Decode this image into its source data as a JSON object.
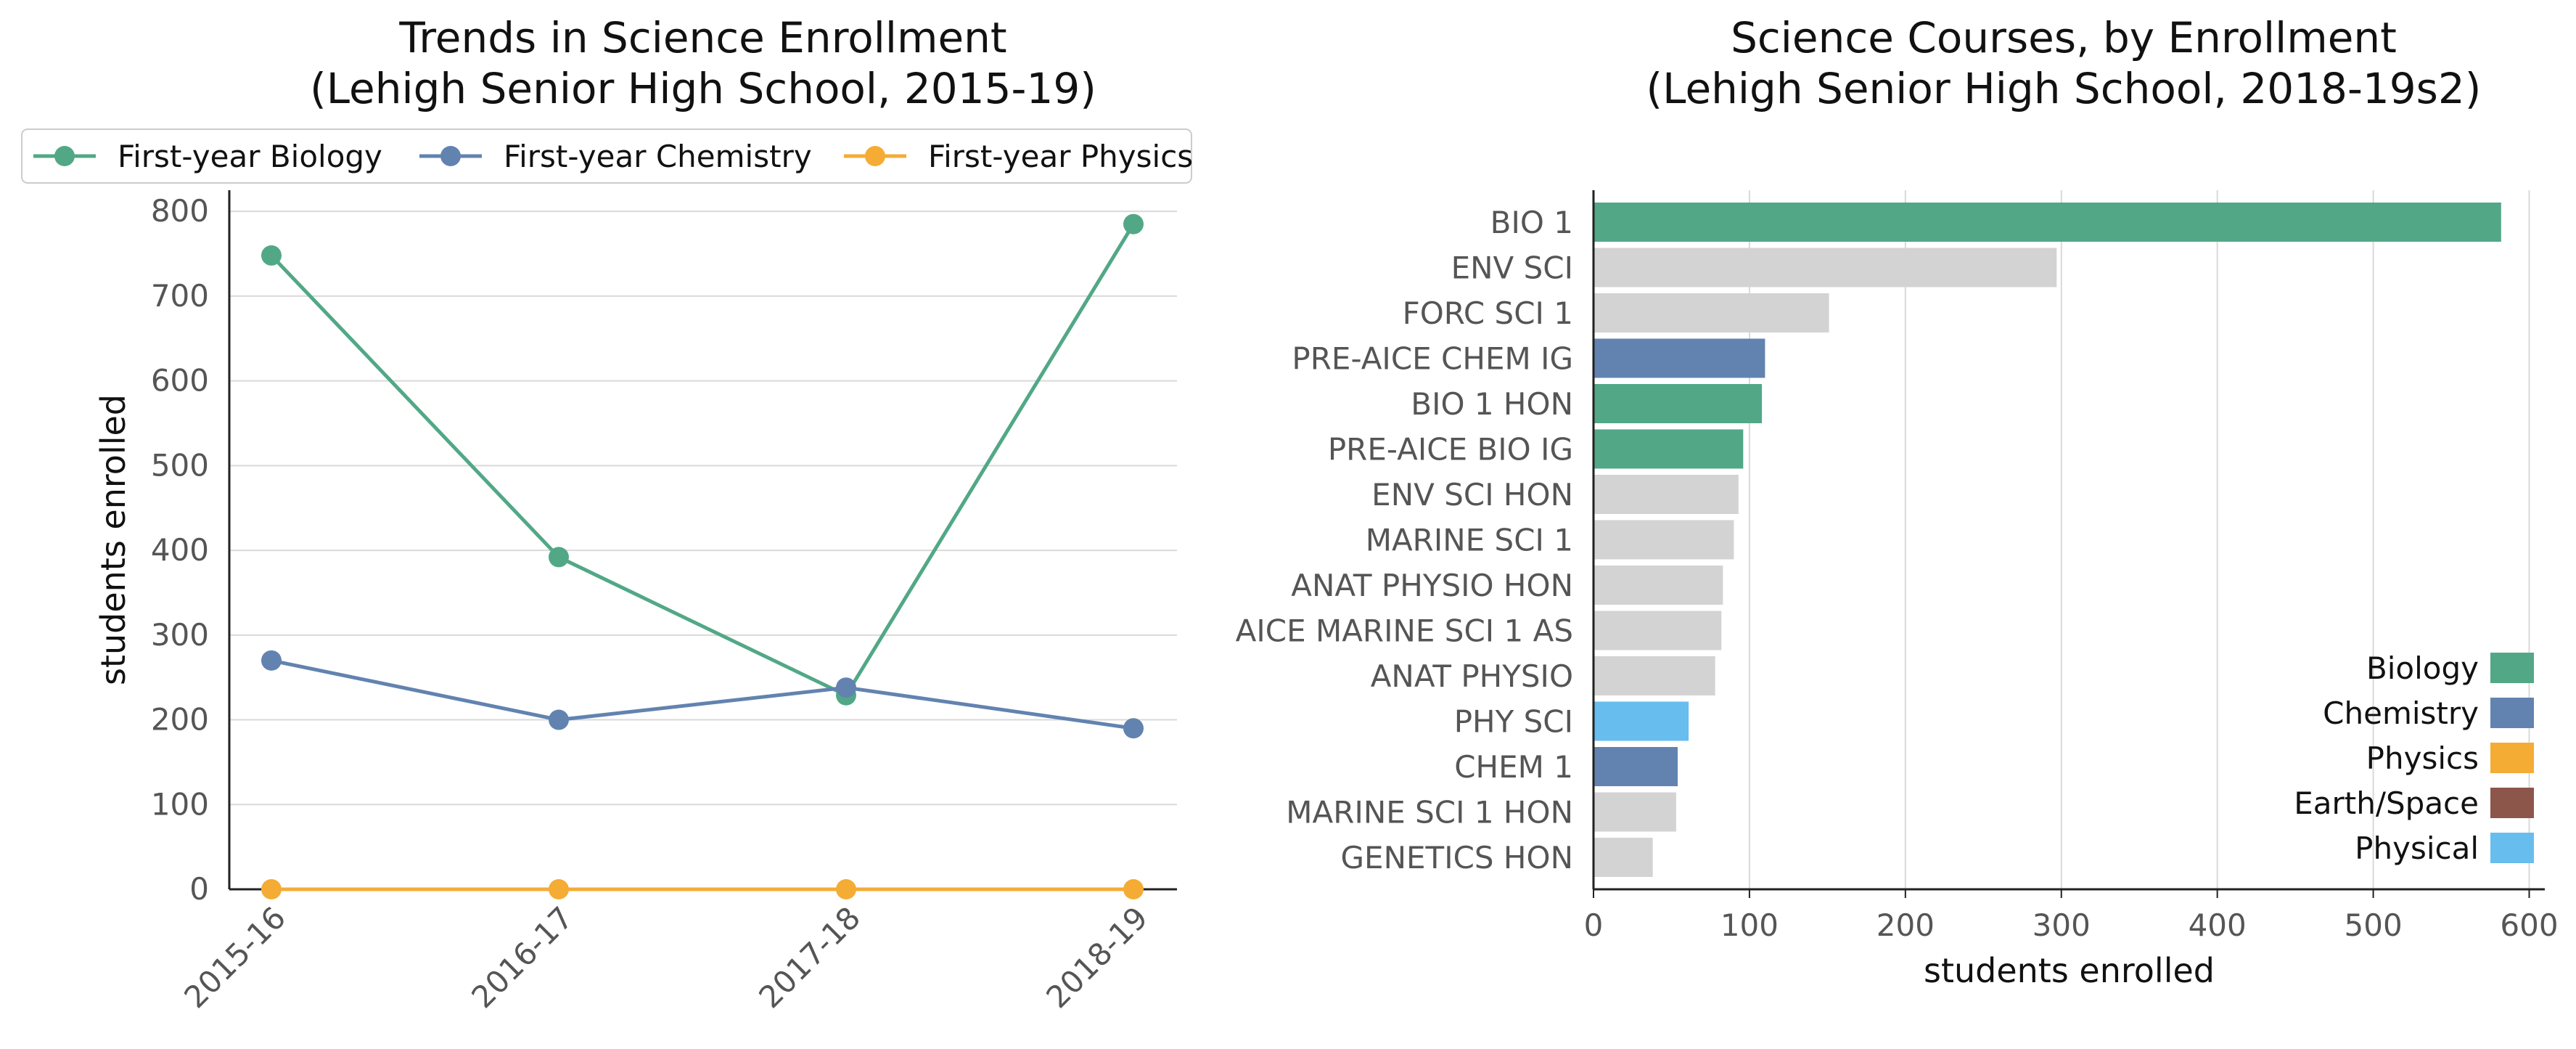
{
  "chart_data": [
    {
      "type": "line",
      "title": "Trends in Science Enrollment\n(Lehigh Senior High School, 2015-19)",
      "xlabel": "",
      "ylabel": "students enrolled",
      "categories": [
        "2015-16",
        "2016-17",
        "2017-18",
        "2018-19"
      ],
      "ylim": [
        0,
        825
      ],
      "yticks": [
        0,
        100,
        200,
        300,
        400,
        500,
        600,
        700,
        800
      ],
      "grid": "horizontal",
      "legend": "top",
      "series": [
        {
          "name": "First-year Biology",
          "color": "#52a886",
          "values": [
            748,
            392,
            229,
            785
          ]
        },
        {
          "name": "First-year Chemistry",
          "color": "#6283b0",
          "values": [
            270,
            200,
            238,
            190
          ]
        },
        {
          "name": "First-year Physics",
          "color": "#f4ac35",
          "values": [
            0,
            0,
            0,
            0
          ]
        }
      ]
    },
    {
      "type": "bar",
      "orientation": "horizontal",
      "title": "Science Courses, by Enrollment\n(Lehigh Senior High School, 2018-19s2)",
      "xlabel": "students enrolled",
      "ylabel": "",
      "xlim": [
        0,
        610
      ],
      "xticks": [
        0,
        100,
        200,
        300,
        400,
        500,
        600
      ],
      "grid": "vertical",
      "legend": "lower-right",
      "legend_entries": [
        {
          "label": "Biology",
          "color": "#52a886"
        },
        {
          "label": "Chemistry",
          "color": "#6283b0"
        },
        {
          "label": "Physics",
          "color": "#f4ac35"
        },
        {
          "label": "Earth/Space",
          "color": "#8c564b"
        },
        {
          "label": "Physical",
          "color": "#67bded"
        }
      ],
      "bars": [
        {
          "label": "BIO 1",
          "value": 582,
          "category": "Biology"
        },
        {
          "label": "ENV SCI",
          "value": 297,
          "category": "Other"
        },
        {
          "label": "FORC SCI 1",
          "value": 151,
          "category": "Other"
        },
        {
          "label": "PRE-AICE CHEM IG",
          "value": 110,
          "category": "Chemistry"
        },
        {
          "label": "BIO 1 HON",
          "value": 108,
          "category": "Biology"
        },
        {
          "label": "PRE-AICE BIO IG",
          "value": 96,
          "category": "Biology"
        },
        {
          "label": "ENV SCI HON",
          "value": 93,
          "category": "Other"
        },
        {
          "label": "MARINE SCI 1",
          "value": 90,
          "category": "Other"
        },
        {
          "label": "ANAT PHYSIO HON",
          "value": 83,
          "category": "Other"
        },
        {
          "label": "AICE MARINE SCI 1 AS",
          "value": 82,
          "category": "Other"
        },
        {
          "label": "ANAT PHYSIO",
          "value": 78,
          "category": "Other"
        },
        {
          "label": "PHY SCI",
          "value": 61,
          "category": "Physical"
        },
        {
          "label": "CHEM 1",
          "value": 54,
          "category": "Chemistry"
        },
        {
          "label": "MARINE SCI 1 HON",
          "value": 53,
          "category": "Other"
        },
        {
          "label": "GENETICS HON",
          "value": 38,
          "category": "Other"
        }
      ],
      "category_colors": {
        "Biology": "#52a886",
        "Chemistry": "#6283b0",
        "Physics": "#f4ac35",
        "Earth/Space": "#8c564b",
        "Physical": "#67bded",
        "Other": "#d3d3d3"
      }
    }
  ]
}
